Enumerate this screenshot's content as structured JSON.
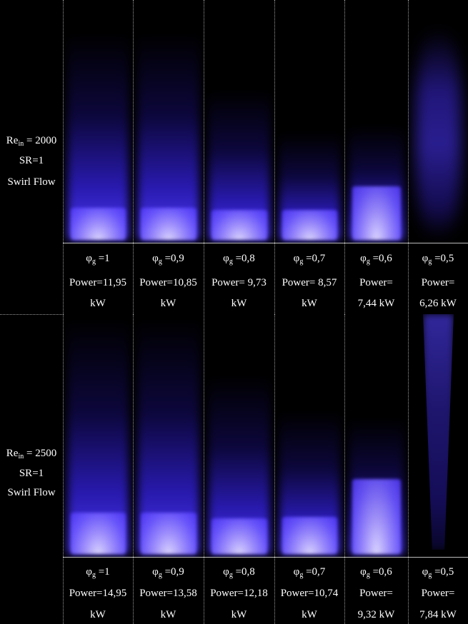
{
  "rows": [
    {
      "label": {
        "re": "Re",
        "sub": "in",
        "value": "= 2000",
        "sr": "SR=1",
        "flow": "Swirl Flow"
      },
      "cells": [
        {
          "phi": "φ",
          "phi_sub": "g",
          "phi_value": "=1",
          "power": [
            "Power=11,95",
            "kW"
          ]
        },
        {
          "phi": "φ",
          "phi_sub": "g",
          "phi_value": "=0,9",
          "power": [
            "Power=10,85",
            "kW"
          ]
        },
        {
          "phi": "φ",
          "phi_sub": "g",
          "phi_value": "=0,8",
          "power": [
            "Power= 9,73",
            "kW"
          ]
        },
        {
          "phi": "φ",
          "phi_sub": "g",
          "phi_value": "=0,7",
          "power": [
            "Power= 8,57",
            "kW"
          ]
        },
        {
          "phi": "φ",
          "phi_sub": "g",
          "phi_value": "=0,6",
          "power": [
            "Power=",
            "7,44 kW"
          ]
        },
        {
          "phi": "φ",
          "phi_sub": "g",
          "phi_value": "=0,5",
          "power": [
            "Power=",
            "6,26 kW"
          ]
        }
      ]
    },
    {
      "label": {
        "re": "Re",
        "sub": "in",
        "value": "= 2500",
        "sr": "SR=1",
        "flow": "Swirl Flow"
      },
      "cells": [
        {
          "phi": "φ",
          "phi_sub": "g",
          "phi_value": "=1",
          "power": [
            "Power=14,95",
            "kW"
          ]
        },
        {
          "phi": "φ",
          "phi_sub": "g",
          "phi_value": "=0,9",
          "power": [
            "Power=13,58",
            "kW"
          ]
        },
        {
          "phi": "φ",
          "phi_sub": "g",
          "phi_value": "=0,8",
          "power": [
            "Power=12,18",
            "kW"
          ]
        },
        {
          "phi": "φ",
          "phi_sub": "g",
          "phi_value": "=0,7",
          "power": [
            "Power=10,74",
            "kW"
          ]
        },
        {
          "phi": "φ",
          "phi_sub": "g",
          "phi_value": "=0,6",
          "power": [
            "Power=",
            "9,32 kW"
          ]
        },
        {
          "phi": "φ",
          "phi_sub": "g",
          "phi_value": "=0,5",
          "power": [
            "Power=",
            "7,84 kW"
          ]
        }
      ]
    }
  ]
}
